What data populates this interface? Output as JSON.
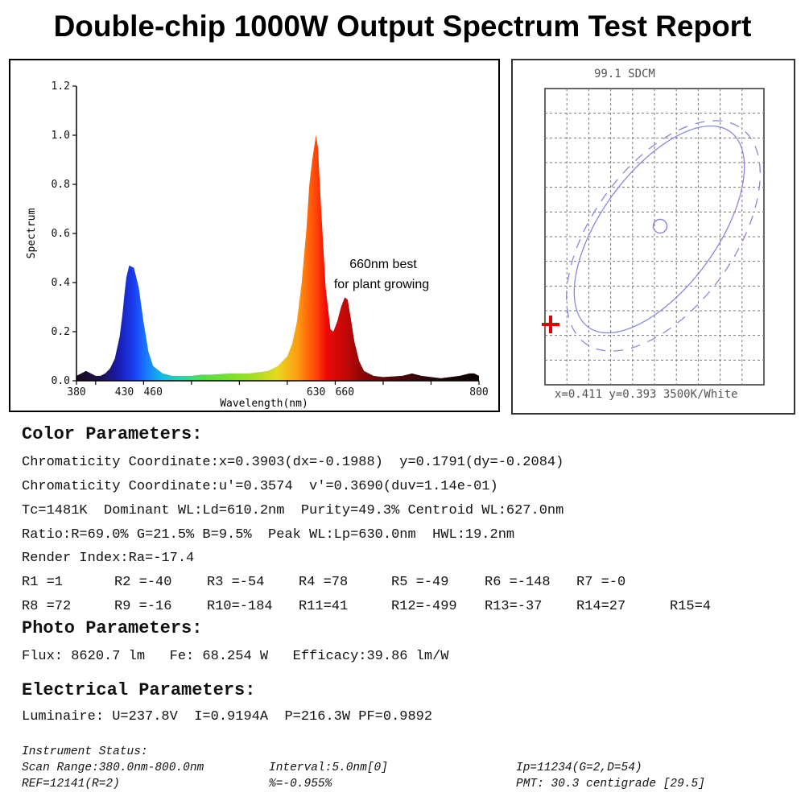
{
  "title": "Double-chip 1000W Output Spectrum Test Report",
  "chart_data": [
    {
      "type": "area",
      "xlabel": "Wavelength(nm)",
      "ylabel": "Spectrum",
      "xlim": [
        380,
        800
      ],
      "ylim": [
        0,
        1.2
      ],
      "x_tick_labels": [
        "380",
        "430",
        "460",
        "630",
        "660",
        "800"
      ],
      "y_tick_labels": [
        "0.0",
        "0.2",
        "0.4",
        "0.6",
        "0.8",
        "1.0",
        "1.2"
      ],
      "annotation": [
        "660nm best",
        "for plant growing"
      ],
      "series": [
        {
          "x": [
            380,
            385,
            390,
            395,
            400,
            405,
            410,
            415,
            420,
            425,
            428,
            430,
            432,
            435,
            440,
            445,
            450,
            455,
            460,
            470,
            480,
            490,
            500,
            510,
            520,
            540,
            560,
            580,
            590,
            600,
            605,
            610,
            615,
            620,
            623,
            626,
            628,
            630,
            632,
            635,
            640,
            645,
            648,
            652,
            656,
            660,
            663,
            666,
            670,
            675,
            680,
            690,
            700,
            720,
            730,
            740,
            760,
            780,
            790,
            795,
            800
          ],
          "y": [
            0.02,
            0.03,
            0.04,
            0.03,
            0.02,
            0.02,
            0.03,
            0.05,
            0.09,
            0.18,
            0.27,
            0.35,
            0.42,
            0.47,
            0.46,
            0.38,
            0.24,
            0.12,
            0.06,
            0.03,
            0.02,
            0.02,
            0.02,
            0.025,
            0.025,
            0.03,
            0.03,
            0.04,
            0.06,
            0.1,
            0.15,
            0.24,
            0.4,
            0.62,
            0.8,
            0.9,
            0.95,
            1.0,
            0.95,
            0.72,
            0.38,
            0.21,
            0.2,
            0.24,
            0.3,
            0.34,
            0.33,
            0.26,
            0.16,
            0.08,
            0.04,
            0.02,
            0.015,
            0.02,
            0.03,
            0.02,
            0.01,
            0.02,
            0.03,
            0.03,
            0.02
          ]
        }
      ]
    }
  ],
  "cie_panel": {
    "header": "99.1 SDCM",
    "footer": "x=0.411 y=0.393 3500K/White"
  },
  "color_parameters": {
    "heading": "Color Parameters:",
    "line1": "Chromaticity Coordinate:x=0.3903(dx=-0.1988)  y=0.1791(dy=-0.2084)",
    "line2": "Chromaticity Coordinate:u'=0.3574  v'=0.3690(duv=1.14e-01)",
    "line3": "Tc=1481K  Dominant WL:Ld=610.2nm  Purity=49.3% Centroid WL:627.0nm",
    "line4": "Ratio:R=69.0% G=21.5% B=9.5%  Peak WL:Lp=630.0nm  HWL:19.2nm",
    "line5": "Render Index:Ra=-17.4",
    "r_values": [
      "R1 =1",
      "R2 =-40",
      "R3 =-54",
      "R4 =78",
      "R5 =-49",
      "R6 =-148",
      "R7 =-0",
      "R8 =72",
      "R9 =-16",
      "R10=-184",
      "R11=41",
      "R12=-499",
      "R13=-37",
      "R14=27",
      "R15=4"
    ]
  },
  "photo_parameters": {
    "heading": "Photo Parameters:",
    "line": "Flux: 8620.7 lm   Fe: 68.254 W   Efficacy:39.86 lm/W"
  },
  "electrical_parameters": {
    "heading": "Electrical Parameters:",
    "line": "Luminaire: U=237.8V  I=0.9194A  P=216.3W PF=0.9892"
  },
  "instrument_status": {
    "heading": "Instrument Status:",
    "scan_range": "Scan Range:380.0nm-800.0nm",
    "interval": "Interval:5.0nm[0]",
    "ip": "Ip=11234(G=2,D=54)",
    "ref": "REF=12141(R=2)",
    "percent": "%=-0.955%",
    "pmt": "PMT: 30.3 centigrade [29.5]"
  }
}
